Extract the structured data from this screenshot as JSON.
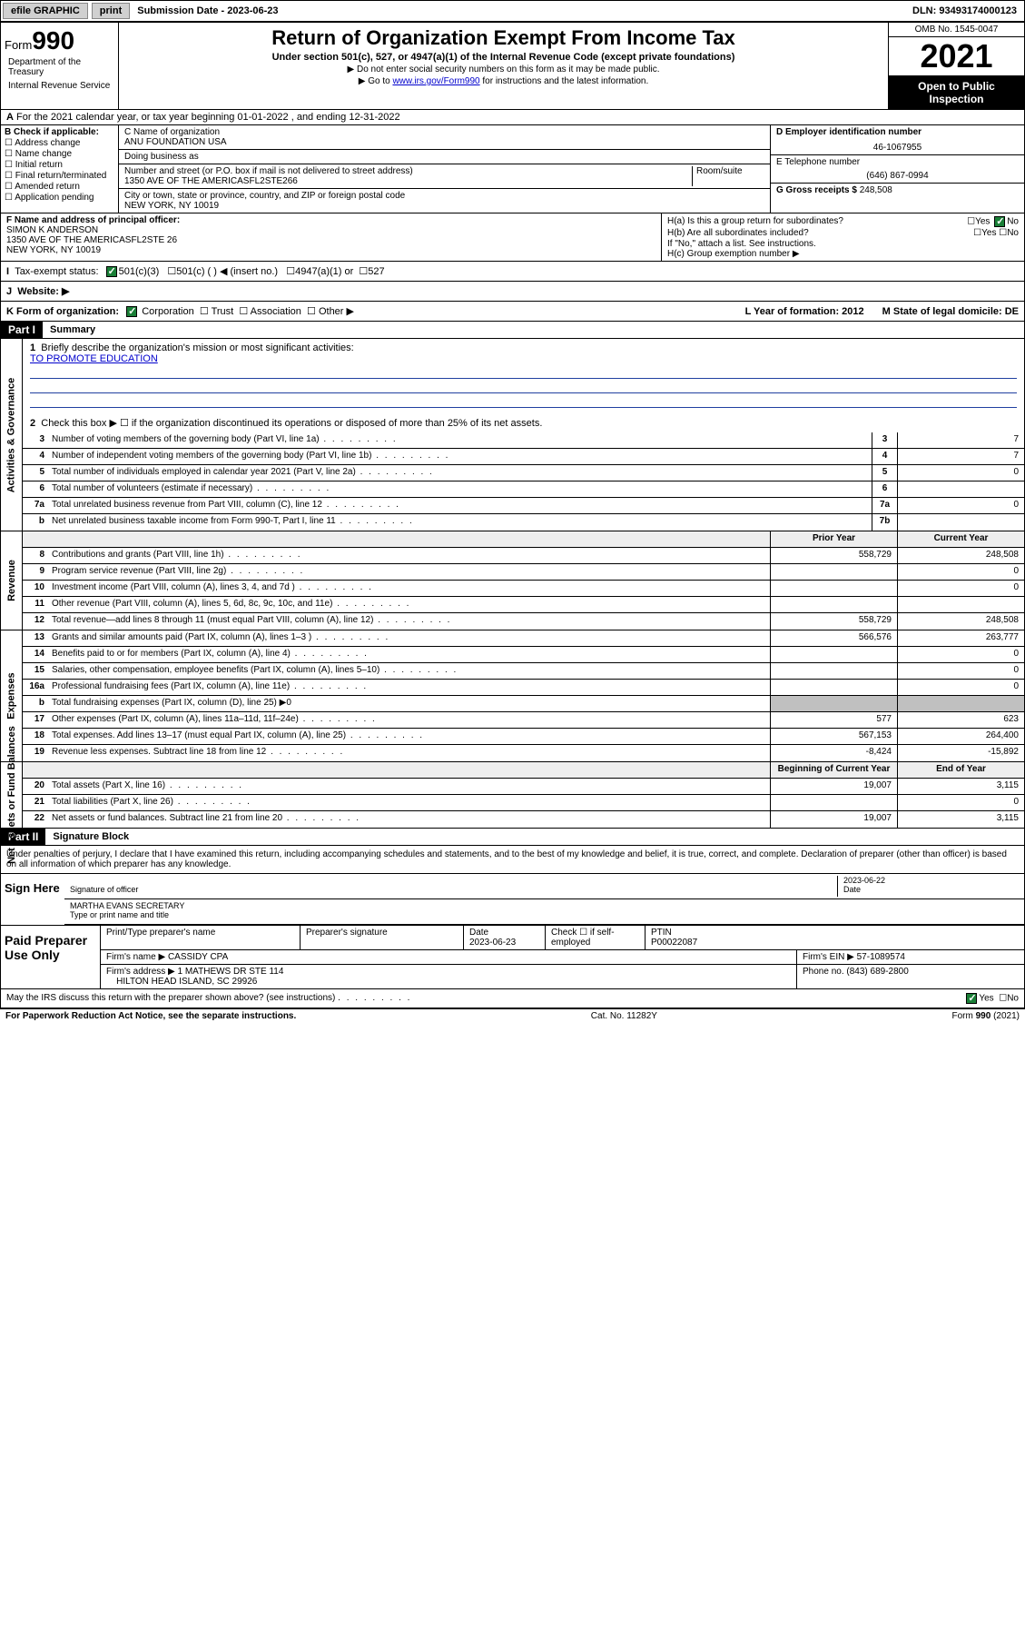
{
  "topbar": {
    "efile": "efile GRAPHIC",
    "print": "print",
    "subdate_lbl": "Submission Date - 2023-06-23",
    "dln": "DLN: 93493174000123"
  },
  "header": {
    "form_lbl": "Form",
    "form_num": "990",
    "title": "Return of Organization Exempt From Income Tax",
    "subtitle": "Under section 501(c), 527, or 4947(a)(1) of the Internal Revenue Code (except private foundations)",
    "note1": "▶ Do not enter social security numbers on this form as it may be made public.",
    "note2_pre": "▶ Go to ",
    "note2_link": "www.irs.gov/Form990",
    "note2_post": " for instructions and the latest information.",
    "omb": "OMB No. 1545-0047",
    "year": "2021",
    "open": "Open to Public Inspection",
    "dept": "Department of the Treasury",
    "irs": "Internal Revenue Service"
  },
  "row_a": "For the 2021 calendar year, or tax year beginning 01-01-2022   , and ending 12-31-2022",
  "col_b": {
    "hdr": "B Check if applicable:",
    "items": [
      "Address change",
      "Name change",
      "Initial return",
      "Final return/terminated",
      "Amended return",
      "Application pending"
    ]
  },
  "col_c": {
    "name_lbl": "C Name of organization",
    "name": "ANU FOUNDATION USA",
    "dba_lbl": "Doing business as",
    "addr_lbl": "Number and street (or P.O. box if mail is not delivered to street address)",
    "room_lbl": "Room/suite",
    "addr": "1350 AVE OF THE AMERICASFL2STE266",
    "city_lbl": "City or town, state or province, country, and ZIP or foreign postal code",
    "city": "NEW YORK, NY  10019"
  },
  "col_de": {
    "d_lbl": "D Employer identification number",
    "ein": "46-1067955",
    "e_lbl": "E Telephone number",
    "phone": "(646) 867-0994",
    "g_lbl": "G Gross receipts $ ",
    "gross": "248,508"
  },
  "row_f": {
    "lbl": "F  Name and address of principal officer:",
    "name": "SIMON K ANDERSON",
    "addr1": "1350 AVE OF THE AMERICASFL2STE 26",
    "addr2": "NEW YORK, NY  10019"
  },
  "row_h": {
    "ha": "H(a)  Is this a group return for subordinates?",
    "hb": "H(b)  Are all subordinates included?",
    "hb_note": "If \"No,\" attach a list. See instructions.",
    "hc": "H(c)  Group exemption number ▶",
    "yes": "Yes",
    "no": "No"
  },
  "row_i": {
    "lbl": "Tax-exempt status:",
    "o1": "501(c)(3)",
    "o2": "501(c) (  ) ◀ (insert no.)",
    "o3": "4947(a)(1) or",
    "o4": "527"
  },
  "row_j": "Website: ▶",
  "row_k": {
    "lbl": "K Form of organization:",
    "opts": [
      "Corporation",
      "Trust",
      "Association",
      "Other ▶"
    ],
    "l": "L Year of formation: 2012",
    "m": "M State of legal domicile: DE"
  },
  "part1": {
    "hdr": "Part I",
    "title": "Summary",
    "line1": "Briefly describe the organization's mission or most significant activities:",
    "mission": "TO PROMOTE EDUCATION",
    "line2": "Check this box ▶ ☐  if the organization discontinued its operations or disposed of more than 25% of its net assets.",
    "sections": {
      "gov": "Activities & Governance",
      "rev": "Revenue",
      "exp": "Expenses",
      "net": "Net Assets or Fund Balances"
    },
    "col_prior": "Prior Year",
    "col_curr": "Current Year",
    "col_beg": "Beginning of Current Year",
    "col_end": "End of Year",
    "rows_gov": [
      {
        "n": "3",
        "d": "Number of voting members of the governing body (Part VI, line 1a)",
        "box": "3",
        "v": "7"
      },
      {
        "n": "4",
        "d": "Number of independent voting members of the governing body (Part VI, line 1b)",
        "box": "4",
        "v": "7"
      },
      {
        "n": "5",
        "d": "Total number of individuals employed in calendar year 2021 (Part V, line 2a)",
        "box": "5",
        "v": "0"
      },
      {
        "n": "6",
        "d": "Total number of volunteers (estimate if necessary)",
        "box": "6",
        "v": ""
      },
      {
        "n": "7a",
        "d": "Total unrelated business revenue from Part VIII, column (C), line 12",
        "box": "7a",
        "v": "0"
      },
      {
        "n": "b",
        "d": "Net unrelated business taxable income from Form 990-T, Part I, line 11",
        "box": "7b",
        "v": ""
      }
    ],
    "rows_rev": [
      {
        "n": "8",
        "d": "Contributions and grants (Part VIII, line 1h)",
        "p": "558,729",
        "c": "248,508"
      },
      {
        "n": "9",
        "d": "Program service revenue (Part VIII, line 2g)",
        "p": "",
        "c": "0"
      },
      {
        "n": "10",
        "d": "Investment income (Part VIII, column (A), lines 3, 4, and 7d )",
        "p": "",
        "c": "0"
      },
      {
        "n": "11",
        "d": "Other revenue (Part VIII, column (A), lines 5, 6d, 8c, 9c, 10c, and 11e)",
        "p": "",
        "c": ""
      },
      {
        "n": "12",
        "d": "Total revenue—add lines 8 through 11 (must equal Part VIII, column (A), line 12)",
        "p": "558,729",
        "c": "248,508"
      }
    ],
    "rows_exp": [
      {
        "n": "13",
        "d": "Grants and similar amounts paid (Part IX, column (A), lines 1–3 )",
        "p": "566,576",
        "c": "263,777"
      },
      {
        "n": "14",
        "d": "Benefits paid to or for members (Part IX, column (A), line 4)",
        "p": "",
        "c": "0"
      },
      {
        "n": "15",
        "d": "Salaries, other compensation, employee benefits (Part IX, column (A), lines 5–10)",
        "p": "",
        "c": "0"
      },
      {
        "n": "16a",
        "d": "Professional fundraising fees (Part IX, column (A), line 11e)",
        "p": "",
        "c": "0"
      },
      {
        "n": "b",
        "d": "Total fundraising expenses (Part IX, column (D), line 25) ▶0",
        "gray": true
      },
      {
        "n": "17",
        "d": "Other expenses (Part IX, column (A), lines 11a–11d, 11f–24e)",
        "p": "577",
        "c": "623"
      },
      {
        "n": "18",
        "d": "Total expenses. Add lines 13–17 (must equal Part IX, column (A), line 25)",
        "p": "567,153",
        "c": "264,400"
      },
      {
        "n": "19",
        "d": "Revenue less expenses. Subtract line 18 from line 12",
        "p": "-8,424",
        "c": "-15,892"
      }
    ],
    "rows_net": [
      {
        "n": "20",
        "d": "Total assets (Part X, line 16)",
        "p": "19,007",
        "c": "3,115"
      },
      {
        "n": "21",
        "d": "Total liabilities (Part X, line 26)",
        "p": "",
        "c": "0"
      },
      {
        "n": "22",
        "d": "Net assets or fund balances. Subtract line 21 from line 20",
        "p": "19,007",
        "c": "3,115"
      }
    ]
  },
  "part2": {
    "hdr": "Part II",
    "title": "Signature Block",
    "decl": "Under penalties of perjury, I declare that I have examined this return, including accompanying schedules and statements, and to the best of my knowledge and belief, it is true, correct, and complete. Declaration of preparer (other than officer) is based on all information of which preparer has any knowledge.",
    "sign_here": "Sign Here",
    "sig_officer": "Signature of officer",
    "sig_date": "2023-06-22",
    "date_lbl": "Date",
    "officer_name": "MARTHA EVANS  SECRETARY",
    "type_name": "Type or print name and title",
    "paid_prep": "Paid Preparer Use Only",
    "pt_name_lbl": "Print/Type preparer's name",
    "prep_sig_lbl": "Preparer's signature",
    "prep_date_lbl": "Date",
    "prep_date": "2023-06-23",
    "check_self": "Check ☐ if self-employed",
    "ptin_lbl": "PTIN",
    "ptin": "P00022087",
    "firm_name_lbl": "Firm's name   ▶",
    "firm_name": "CASSIDY CPA",
    "firm_ein_lbl": "Firm's EIN ▶",
    "firm_ein": "57-1089574",
    "firm_addr_lbl": "Firm's address ▶",
    "firm_addr1": "1 MATHEWS DR STE 114",
    "firm_addr2": "HILTON HEAD ISLAND, SC  29926",
    "phone_lbl": "Phone no.",
    "phone": "(843) 689-2800",
    "discuss": "May the IRS discuss this return with the preparer shown above? (see instructions)",
    "yes": "Yes",
    "no": "No"
  },
  "footer": {
    "pra": "For Paperwork Reduction Act Notice, see the separate instructions.",
    "cat": "Cat. No. 11282Y",
    "form": "Form 990 (2021)"
  }
}
